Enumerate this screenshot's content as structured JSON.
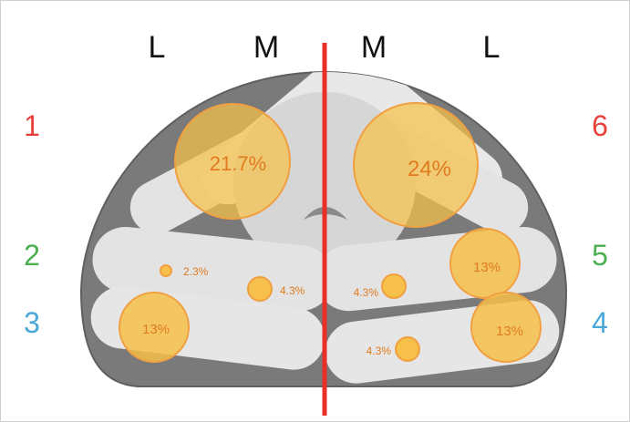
{
  "headers": {
    "left_lateral": "L",
    "left_medial": "M",
    "right_medial": "M",
    "right_lateral": "L"
  },
  "zones": [
    {
      "number": "1",
      "color": "#e8403a"
    },
    {
      "number": "2",
      "color": "#4bae4f"
    },
    {
      "number": "3",
      "color": "#4aa8d8"
    },
    {
      "number": "4",
      "color": "#4aa8d8"
    },
    {
      "number": "5",
      "color": "#4bae4f"
    },
    {
      "number": "6",
      "color": "#e8403a"
    }
  ],
  "markers": {
    "z1_lateral": "21.7%",
    "z6_medial": "24%",
    "z2_lateral": "2.3%",
    "z2_medial": "4.3%",
    "z5_medial": "4.3%",
    "z5_lateral": "13%",
    "z3_lateral": "13%",
    "z4_medial": "4.3%",
    "z4_lateral": "13%"
  },
  "colors": {
    "midline": "#e8302a",
    "marker_fill": "#f6c04a",
    "marker_stroke": "#f0a040",
    "percent_text": "#e07b20",
    "dome": "#7a7a7a",
    "muscle": "#e3e3e3"
  }
}
